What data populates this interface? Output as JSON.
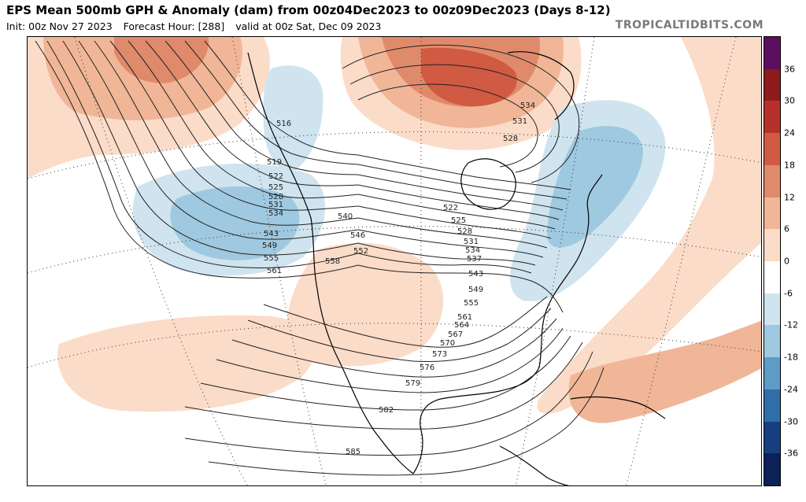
{
  "header": {
    "title": "EPS Mean 500mb GPH & Anomaly (dam) from 00z04Dec2023 to 00z09Dec2023 (Days 8-12)",
    "init": "Init: 00z Nov 27 2023",
    "forecast_hour": "Forecast Hour: [288]",
    "valid": "valid at 00z Sat, Dec 09 2023",
    "brand": "TROPICALTIDBITS.COM"
  },
  "colorbar": {
    "ticks": [
      "36",
      "30",
      "24",
      "18",
      "12",
      "6",
      "0",
      "-6",
      "-12",
      "-18",
      "-24",
      "-30",
      "-36"
    ],
    "colors": [
      "#5c0f5f",
      "#8e1c1c",
      "#b6312a",
      "#d05a42",
      "#e08a6c",
      "#f0b697",
      "#fbdcc8",
      "#ffffff",
      "#cfe4ef",
      "#9fc9e0",
      "#5d9cc6",
      "#2f6ea8",
      "#173f80",
      "#0b2158"
    ]
  },
  "contour_labels": [
    "516",
    "519",
    "522",
    "525",
    "528",
    "531",
    "534",
    "540",
    "543",
    "546",
    "549",
    "552",
    "555",
    "558",
    "561",
    "534",
    "531",
    "528",
    "522",
    "525",
    "528",
    "531",
    "534",
    "537",
    "543",
    "549",
    "555",
    "561",
    "564",
    "567",
    "570",
    "573",
    "576",
    "579",
    "582",
    "585"
  ]
}
